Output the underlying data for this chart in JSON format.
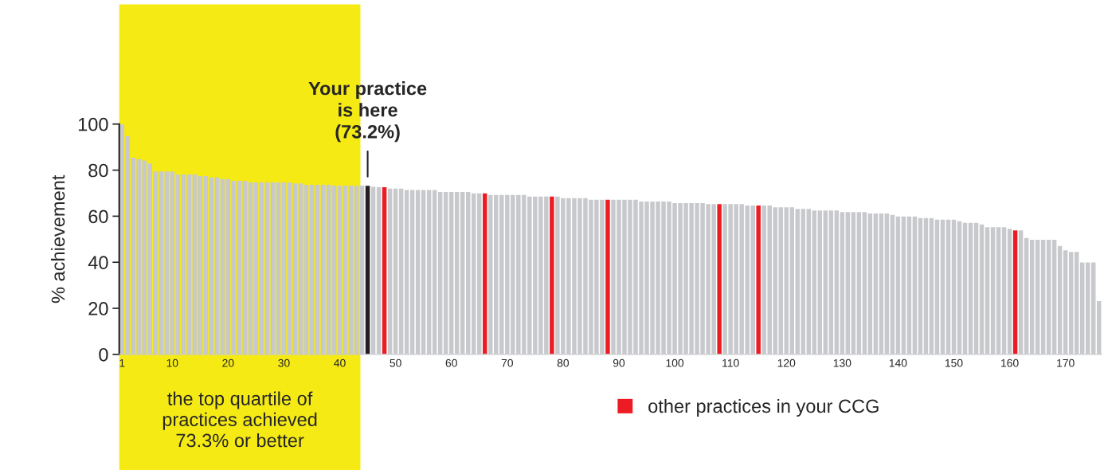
{
  "chart_data": {
    "type": "bar",
    "ylabel": "% achievement",
    "x": [
      1,
      2,
      3,
      4,
      5,
      6,
      7,
      8,
      9,
      10,
      11,
      12,
      13,
      14,
      15,
      16,
      17,
      18,
      19,
      20,
      21,
      22,
      23,
      24,
      25,
      26,
      27,
      28,
      29,
      30,
      31,
      32,
      33,
      34,
      35,
      36,
      37,
      38,
      39,
      40,
      41,
      42,
      43,
      44,
      45,
      46,
      47,
      48,
      49,
      50,
      51,
      52,
      53,
      54,
      55,
      56,
      57,
      58,
      59,
      60,
      61,
      62,
      63,
      64,
      65,
      66,
      67,
      68,
      69,
      70,
      71,
      72,
      73,
      74,
      75,
      76,
      77,
      78,
      79,
      80,
      81,
      82,
      83,
      84,
      85,
      86,
      87,
      88,
      89,
      90,
      91,
      92,
      93,
      94,
      95,
      96,
      97,
      98,
      99,
      100,
      101,
      102,
      103,
      104,
      105,
      106,
      107,
      108,
      109,
      110,
      111,
      112,
      113,
      114,
      115,
      116,
      117,
      118,
      119,
      120,
      121,
      122,
      123,
      124,
      125,
      126,
      127,
      128,
      129,
      130,
      131,
      132,
      133,
      134,
      135,
      136,
      137,
      138,
      139,
      140,
      141,
      142,
      143,
      144,
      145,
      146,
      147,
      148,
      149,
      150,
      151,
      152,
      153,
      154,
      155,
      156,
      157,
      158,
      159,
      160,
      161,
      162,
      163,
      164,
      165,
      166,
      167,
      168,
      169,
      170,
      171,
      172,
      173,
      174,
      175,
      176
    ],
    "series": [
      {
        "colors": [
          "#c8c9cc",
          "#c8c9cc",
          "#c8c9cc",
          "#c8c9cc",
          "#c8c9cc",
          "#c8c9cc",
          "#c8c9cc",
          "#c8c9cc",
          "#c8c9cc",
          "#c8c9cc",
          "#c8c9cc",
          "#c8c9cc",
          "#c8c9cc",
          "#c8c9cc",
          "#c8c9cc",
          "#c8c9cc",
          "#c8c9cc",
          "#c8c9cc",
          "#c8c9cc",
          "#c8c9cc",
          "#c8c9cc",
          "#c8c9cc",
          "#c8c9cc",
          "#c8c9cc",
          "#c8c9cc",
          "#c8c9cc",
          "#c8c9cc",
          "#c8c9cc",
          "#c8c9cc",
          "#c8c9cc",
          "#c8c9cc",
          "#c8c9cc",
          "#c8c9cc",
          "#c8c9cc",
          "#c8c9cc",
          "#c8c9cc",
          "#c8c9cc",
          "#c8c9cc",
          "#c8c9cc",
          "#c8c9cc",
          "#c8c9cc",
          "#c8c9cc",
          "#c8c9cc",
          "#c8c9cc",
          "#231f20",
          "#c8c9cc",
          "#c8c9cc",
          "#c8c9cc",
          "#c8c9cc",
          "#c8c9cc",
          "#c8c9cc",
          "#c8c9cc",
          "#c8c9cc",
          "#c8c9cc",
          "#c8c9cc",
          "#c8c9cc",
          "#c8c9cc",
          "#c8c9cc",
          "#c8c9cc",
          "#c8c9cc",
          "#c8c9cc",
          "#c8c9cc",
          "#c8c9cc",
          "#c8c9cc",
          "#c8c9cc",
          "#c8c9cc",
          "#c8c9cc",
          "#c8c9cc",
          "#c8c9cc",
          "#c8c9cc",
          "#c8c9cc",
          "#c8c9cc",
          "#c8c9cc",
          "#c8c9cc",
          "#c8c9cc",
          "#c8c9cc",
          "#c8c9cc",
          "#c8c9cc",
          "#c8c9cc",
          "#c8c9cc",
          "#c8c9cc",
          "#c8c9cc",
          "#c8c9cc",
          "#c8c9cc",
          "#c8c9cc",
          "#c8c9cc",
          "#c8c9cc",
          "#c8c9cc",
          "#c8c9cc",
          "#c8c9cc",
          "#c8c9cc",
          "#c8c9cc",
          "#c8c9cc",
          "#c8c9cc",
          "#c8c9cc",
          "#c8c9cc",
          "#c8c9cc",
          "#c8c9cc",
          "#c8c9cc",
          "#c8c9cc",
          "#c8c9cc",
          "#c8c9cc",
          "#c8c9cc",
          "#c8c9cc",
          "#c8c9cc",
          "#c8c9cc",
          "#c8c9cc",
          "#c8c9cc",
          "#c8c9cc",
          "#c8c9cc",
          "#c8c9cc",
          "#c8c9cc",
          "#c8c9cc",
          "#c8c9cc",
          "#c8c9cc",
          "#c8c9cc",
          "#c8c9cc",
          "#c8c9cc",
          "#c8c9cc",
          "#c8c9cc",
          "#c8c9cc",
          "#c8c9cc",
          "#c8c9cc",
          "#c8c9cc",
          "#c8c9cc",
          "#c8c9cc",
          "#c8c9cc",
          "#c8c9cc",
          "#c8c9cc",
          "#c8c9cc",
          "#c8c9cc",
          "#c8c9cc",
          "#c8c9cc",
          "#c8c9cc",
          "#c8c9cc",
          "#c8c9cc",
          "#c8c9cc",
          "#c8c9cc",
          "#c8c9cc",
          "#c8c9cc",
          "#c8c9cc",
          "#c8c9cc",
          "#c8c9cc",
          "#c8c9cc",
          "#c8c9cc",
          "#c8c9cc",
          "#c8c9cc",
          "#c8c9cc",
          "#c8c9cc",
          "#c8c9cc",
          "#c8c9cc",
          "#c8c9cc",
          "#c8c9cc",
          "#c8c9cc",
          "#c8c9cc",
          "#c8c9cc",
          "#c8c9cc",
          "#c8c9cc",
          "#c8c9cc",
          "#c8c9cc",
          "#c8c9cc",
          "#c8c9cc",
          "#c8c9cc",
          "#c8c9cc",
          "#c8c9cc",
          "#c8c9cc",
          "#c8c9cc",
          "#c8c9cc",
          "#c8c9cc",
          "#c8c9cc",
          "#c8c9cc",
          "#c8c9cc",
          "#c8c9cc",
          "#c8c9cc",
          "#c8c9cc",
          "#c8c9cc"
        ],
        "values": [
          99.8,
          94.8,
          85.4,
          84.8,
          84.2,
          82.9,
          79.4,
          79.4,
          79.4,
          79.4,
          78.1,
          78.1,
          78.1,
          78.1,
          77.4,
          77.4,
          76.8,
          76.8,
          76.1,
          76.1,
          75.4,
          75.4,
          75.4,
          74.7,
          74.7,
          74.7,
          74.7,
          74.7,
          74.7,
          74.7,
          74.7,
          74.2,
          74.2,
          73.6,
          73.6,
          73.6,
          73.6,
          73.6,
          73.3,
          73.3,
          73.3,
          73.3,
          73.3,
          73.3,
          73.2,
          72.8,
          72.6,
          null,
          72.0,
          72.0,
          72.0,
          71.4,
          71.4,
          71.4,
          71.4,
          71.4,
          71.4,
          70.5,
          70.5,
          70.5,
          70.5,
          70.5,
          70.5,
          69.9,
          69.9,
          null,
          69.2,
          69.2,
          69.2,
          69.2,
          69.2,
          69.2,
          69.2,
          68.5,
          68.5,
          68.5,
          68.5,
          null,
          68.5,
          67.8,
          67.8,
          67.8,
          67.8,
          67.8,
          67.1,
          67.1,
          67.1,
          null,
          67.1,
          67.1,
          67.1,
          67.1,
          67.1,
          66.4,
          66.4,
          66.4,
          66.4,
          66.4,
          66.4,
          65.7,
          65.7,
          65.7,
          65.7,
          65.7,
          65.7,
          65.2,
          65.2,
          null,
          65.2,
          65.2,
          65.2,
          65.2,
          64.6,
          64.6,
          null,
          64.6,
          64.6,
          63.9,
          63.9,
          63.9,
          63.9,
          63.2,
          63.2,
          63.2,
          62.5,
          62.5,
          62.5,
          62.5,
          62.5,
          61.8,
          61.8,
          61.8,
          61.8,
          61.8,
          61.2,
          61.2,
          61.2,
          61.2,
          60.6,
          59.9,
          59.9,
          59.9,
          59.9,
          59.2,
          59.2,
          59.2,
          58.5,
          58.5,
          58.5,
          58.5,
          57.8,
          57.1,
          57.1,
          57.1,
          56.4,
          55.2,
          55.2,
          55.2,
          55.2,
          54.5,
          null,
          53.8,
          50.5,
          49.8,
          49.8,
          49.8,
          49.8,
          49.8,
          47.1,
          45.2,
          44.5,
          44.5,
          39.9,
          39.9,
          39.9,
          23.1
        ]
      },
      {
        "name": "other practices in your CCG",
        "color": "#ed1c24",
        "values": [
          null,
          null,
          null,
          null,
          null,
          null,
          null,
          null,
          null,
          null,
          null,
          null,
          null,
          null,
          null,
          null,
          null,
          null,
          null,
          null,
          null,
          null,
          null,
          null,
          null,
          null,
          null,
          null,
          null,
          null,
          null,
          null,
          null,
          null,
          null,
          null,
          null,
          null,
          null,
          null,
          null,
          null,
          null,
          null,
          null,
          null,
          null,
          72.6,
          null,
          null,
          null,
          null,
          null,
          null,
          null,
          null,
          null,
          null,
          null,
          null,
          null,
          null,
          null,
          null,
          null,
          69.9,
          null,
          null,
          null,
          null,
          null,
          null,
          null,
          null,
          null,
          null,
          null,
          68.5,
          null,
          null,
          null,
          null,
          null,
          null,
          null,
          null,
          null,
          67.1,
          null,
          null,
          null,
          null,
          null,
          null,
          null,
          null,
          null,
          null,
          null,
          null,
          null,
          null,
          null,
          null,
          null,
          null,
          null,
          65.2,
          null,
          null,
          null,
          null,
          null,
          null,
          64.6,
          null,
          null,
          null,
          null,
          null,
          null,
          null,
          null,
          null,
          null,
          null,
          null,
          null,
          null,
          null,
          null,
          null,
          null,
          null,
          null,
          null,
          null,
          null,
          null,
          null,
          null,
          null,
          null,
          null,
          null,
          null,
          null,
          null,
          null,
          null,
          null,
          null,
          null,
          null,
          null,
          null,
          null,
          null,
          null,
          null,
          53.8,
          null,
          null,
          null,
          null,
          null,
          null,
          null,
          null,
          null,
          null,
          null,
          null,
          null,
          null,
          null
        ]
      }
    ],
    "xlim": [
      0.5,
      176.5
    ],
    "xticks": [
      1,
      10,
      20,
      30,
      40,
      50,
      60,
      70,
      80,
      90,
      100,
      110,
      120,
      130,
      140,
      150,
      160,
      170
    ],
    "ylim": [
      0,
      100
    ],
    "yticks": [
      0,
      20,
      40,
      60,
      80,
      100
    ],
    "bands": [
      {
        "axis": "x",
        "from": 0.5,
        "to": 43.7,
        "label": "the top quartile of\npractices achieved\n73.3% or better",
        "color": "#f5ea14"
      }
    ],
    "annotations": [
      {
        "text": "Your practice\nis here\n(73.2%)",
        "x": 45,
        "y": 73.2
      }
    ],
    "legend": "bottom",
    "grid": false
  }
}
